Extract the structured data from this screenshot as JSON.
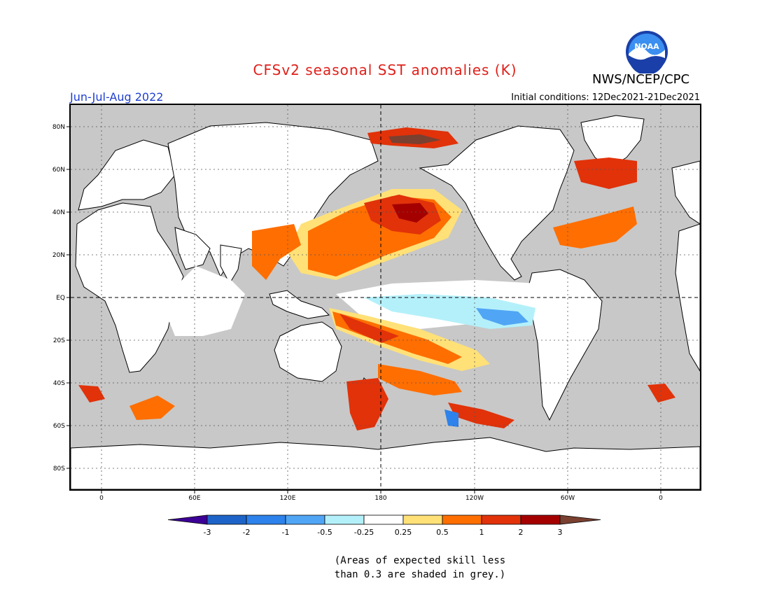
{
  "header": {
    "title": "CFSv2 seasonal SST anomalies (K)",
    "period": "Jun-Jul-Aug 2022",
    "initial_conditions": "Initial conditions: 12Dec2021-21Dec2021",
    "organization": "NWS/NCEP/CPC",
    "logo_text": "NOAA"
  },
  "map": {
    "land_color": "#ffffff",
    "nodata_color": "#c8c8c8",
    "lat_labels": [
      "80N",
      "60N",
      "40N",
      "20N",
      "EQ",
      "20S",
      "40S",
      "60S",
      "80S"
    ],
    "lon_labels": [
      "0",
      "60E",
      "120E",
      "180",
      "120W",
      "60W",
      "0"
    ]
  },
  "legend": {
    "colors": [
      "#3c0096",
      "#1e64c8",
      "#2d82eb",
      "#50a5f5",
      "#b4f0fa",
      "#ffffff",
      "#ffe178",
      "#ff6e00",
      "#e1320a",
      "#a50000",
      "#7a4030"
    ],
    "labels": [
      "-3",
      "-2",
      "-1",
      "-0.5",
      "-0.25",
      "0.25",
      "0.5",
      "1",
      "2",
      "3"
    ]
  },
  "footnote": {
    "line1": "(Areas of expected skill less",
    "line2": "than 0.3 are shaded in grey.)"
  }
}
